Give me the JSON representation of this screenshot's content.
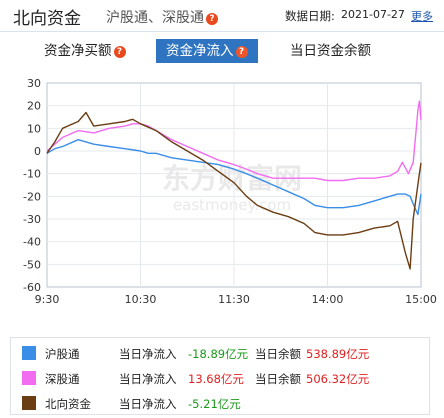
{
  "header": {
    "title": "北向资金",
    "subtitle": "沪股通、深股通",
    "date_label": "数据日期:",
    "date_value": "2021-07-27",
    "more_label": "更多"
  },
  "tabs": [
    {
      "label": "资金净买额",
      "active": false
    },
    {
      "label": "资金净流入",
      "active": true
    },
    {
      "label": "当日资金余额",
      "active": false
    }
  ],
  "watermark": {
    "cn": "东方财富网",
    "en": "eastmoney.com"
  },
  "colors": {
    "hgt": "#3a8ee6",
    "sgt": "#f26cf2",
    "bxzj": "#6b3d12",
    "accent": "#2f74c0"
  },
  "chart_data": {
    "type": "line",
    "x_range": [
      "9:30",
      "15:00"
    ],
    "x_ticks": [
      "9:30",
      "10:30",
      "11:30",
      "14:00",
      "15:00"
    ],
    "ylim": [
      -60,
      30
    ],
    "y_ticks": [
      30,
      20,
      10,
      0,
      -10,
      -20,
      -30,
      -40,
      -50,
      -60
    ],
    "grid": true,
    "series": [
      {
        "name": "沪股通",
        "color": "#3a8ee6",
        "points": [
          [
            0,
            -1
          ],
          [
            5,
            1
          ],
          [
            10,
            2
          ],
          [
            20,
            5
          ],
          [
            30,
            3
          ],
          [
            40,
            2
          ],
          [
            50,
            1
          ],
          [
            60,
            0
          ],
          [
            65,
            -1
          ],
          [
            70,
            -1
          ],
          [
            80,
            -3
          ],
          [
            90,
            -4
          ],
          [
            100,
            -5
          ],
          [
            110,
            -6
          ],
          [
            120,
            -8
          ],
          [
            128,
            -10
          ],
          [
            135,
            -12
          ],
          [
            145,
            -15
          ],
          [
            155,
            -18
          ],
          [
            165,
            -21
          ],
          [
            172,
            -24
          ],
          [
            180,
            -25
          ],
          [
            190,
            -25
          ],
          [
            200,
            -24
          ],
          [
            210,
            -22
          ],
          [
            220,
            -20
          ],
          [
            225,
            -19
          ],
          [
            230,
            -19
          ],
          [
            233,
            -20
          ],
          [
            236,
            -25
          ],
          [
            238,
            -28
          ],
          [
            240,
            -18.9
          ]
        ]
      },
      {
        "name": "深股通",
        "color": "#f26cf2",
        "points": [
          [
            0,
            0
          ],
          [
            5,
            3
          ],
          [
            10,
            6
          ],
          [
            20,
            9
          ],
          [
            30,
            8
          ],
          [
            40,
            10
          ],
          [
            50,
            11
          ],
          [
            55,
            12
          ],
          [
            60,
            12
          ],
          [
            65,
            11
          ],
          [
            70,
            9
          ],
          [
            80,
            5
          ],
          [
            90,
            2
          ],
          [
            100,
            -1
          ],
          [
            110,
            -4
          ],
          [
            120,
            -6
          ],
          [
            128,
            -8
          ],
          [
            135,
            -10
          ],
          [
            145,
            -12
          ],
          [
            155,
            -12
          ],
          [
            165,
            -12
          ],
          [
            172,
            -12
          ],
          [
            180,
            -13
          ],
          [
            190,
            -13
          ],
          [
            200,
            -12
          ],
          [
            210,
            -12
          ],
          [
            220,
            -11
          ],
          [
            225,
            -9
          ],
          [
            228,
            -5
          ],
          [
            232,
            -10
          ],
          [
            235,
            -5
          ],
          [
            237,
            10
          ],
          [
            238,
            18
          ],
          [
            239,
            22
          ],
          [
            240,
            13.7
          ]
        ]
      },
      {
        "name": "北向资金",
        "color": "#6b3d12",
        "points": [
          [
            0,
            -1
          ],
          [
            5,
            4
          ],
          [
            10,
            10
          ],
          [
            20,
            13
          ],
          [
            25,
            17
          ],
          [
            30,
            11
          ],
          [
            40,
            12
          ],
          [
            50,
            13
          ],
          [
            55,
            14
          ],
          [
            60,
            12
          ],
          [
            70,
            9
          ],
          [
            80,
            4
          ],
          [
            90,
            0
          ],
          [
            100,
            -4
          ],
          [
            110,
            -9
          ],
          [
            120,
            -14
          ],
          [
            128,
            -20
          ],
          [
            135,
            -24
          ],
          [
            145,
            -27
          ],
          [
            155,
            -29
          ],
          [
            165,
            -32
          ],
          [
            172,
            -36
          ],
          [
            180,
            -37
          ],
          [
            190,
            -37
          ],
          [
            200,
            -36
          ],
          [
            210,
            -34
          ],
          [
            220,
            -33
          ],
          [
            225,
            -31
          ],
          [
            230,
            -45
          ],
          [
            233,
            -52
          ],
          [
            235,
            -30
          ],
          [
            237,
            -20
          ],
          [
            239,
            -10
          ],
          [
            240,
            -5.2
          ]
        ]
      }
    ]
  },
  "legend": [
    {
      "name": "沪股通",
      "inflow_label": "当日净流入",
      "inflow_value": "-18.89亿元",
      "balance_label": "当日余额",
      "balance_value": "538.89亿元"
    },
    {
      "name": "深股通",
      "inflow_label": "当日净流入",
      "inflow_value": "13.68亿元",
      "balance_label": "当日余额",
      "balance_value": "506.32亿元"
    },
    {
      "name": "北向资金",
      "inflow_label": "当日净流入",
      "inflow_value": "-5.21亿元"
    }
  ]
}
